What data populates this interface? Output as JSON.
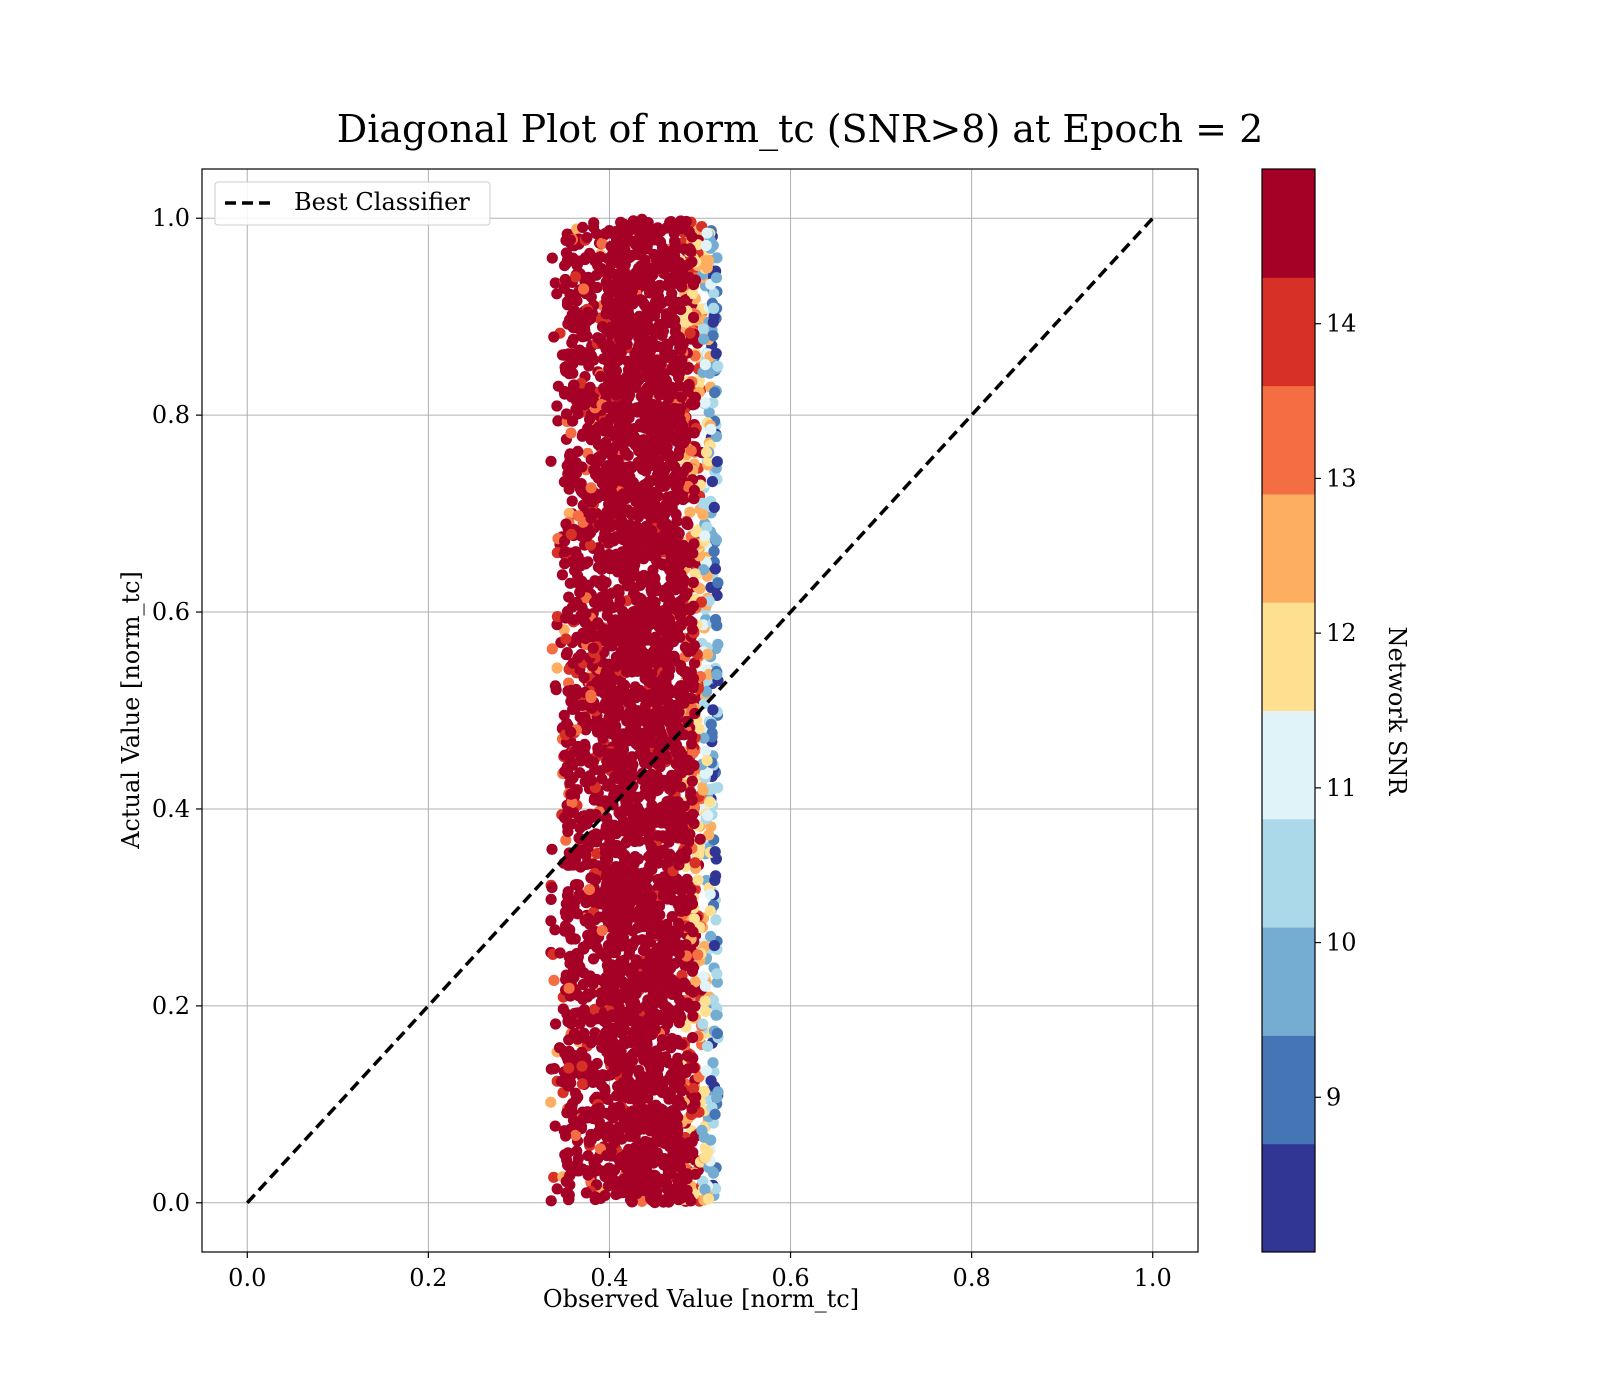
{
  "chart_data": {
    "type": "scatter",
    "title": "Diagonal Plot of norm_tc (SNR>8) at Epoch = 2",
    "xlabel": "Observed Value [norm_tc]",
    "ylabel": "Actual Value [norm_tc]",
    "xlim": [
      -0.05,
      1.05
    ],
    "ylim": [
      -0.05,
      1.05
    ],
    "xticks": [
      "0.0",
      "0.2",
      "0.4",
      "0.6",
      "0.8",
      "1.0"
    ],
    "yticks": [
      "0.0",
      "0.2",
      "0.4",
      "0.6",
      "0.8",
      "1.0"
    ],
    "grid": true,
    "legend": {
      "position": "upper-left",
      "entries": [
        "Best Classifier"
      ]
    },
    "reference_line": {
      "name": "Best Classifier",
      "style": "dashed",
      "color": "#000000",
      "x": [
        0.0,
        1.0
      ],
      "y": [
        0.0,
        1.0
      ]
    },
    "scatter": {
      "description_of_distribution": "dense vertical band",
      "x_core_range": [
        0.39,
        0.5
      ],
      "x_extent": [
        0.31,
        0.52
      ],
      "y_range": [
        0.0,
        1.0
      ],
      "color_by": "Network SNR"
    },
    "colorbar": {
      "label": "Network SNR",
      "range": [
        8.0,
        15.0
      ],
      "ticks": [
        "9",
        "10",
        "11",
        "12",
        "13",
        "14"
      ],
      "tick_values": [
        9,
        10,
        11,
        12,
        13,
        14
      ],
      "bins": 10,
      "colors": [
        "#313695",
        "#4575b4",
        "#74add1",
        "#abd9e9",
        "#e0f3f8",
        "#fee090",
        "#fdae61",
        "#f46d43",
        "#d73027",
        "#a50026"
      ]
    }
  }
}
